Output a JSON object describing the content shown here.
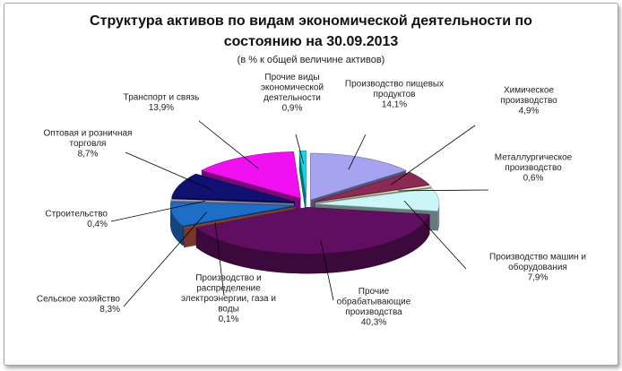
{
  "chart_data": {
    "type": "pie",
    "title_line1": "Структура активов по видам экономической деятельности по",
    "title_line2": "состоянию на 30.09.2013",
    "subtitle": "(в % к общей величине активов)",
    "slices": [
      {
        "label_lines": [
          "Производство пищевых",
          "продуктов"
        ],
        "pct_text": "14,1%",
        "value": 14.1,
        "color": "#a6a3f0",
        "icon": "none"
      },
      {
        "label_lines": [
          "Химическое",
          "производство"
        ],
        "pct_text": "4,9%",
        "value": 4.9,
        "color": "#8b2a55"
      },
      {
        "label_lines": [
          "Металлургическое",
          "производство"
        ],
        "pct_text": "0,6%",
        "value": 0.6,
        "color": "#f2f2c8"
      },
      {
        "label_lines": [
          "Производство машин и",
          "оборудования"
        ],
        "pct_text": "7,9%",
        "value": 7.9,
        "color": "#ccf5f8"
      },
      {
        "label_lines": [
          "Прочие",
          "обрабатывающие",
          "производства"
        ],
        "pct_text": "40,3%",
        "value": 40.3,
        "color": "#600f60"
      },
      {
        "label_lines": [
          "Производство и",
          "распределение",
          "электроэнергии, газа и",
          "воды"
        ],
        "pct_text": "0,1%",
        "value": 0.1,
        "color": "#f06a5a"
      },
      {
        "label_lines": [
          "Сельское хозяйство"
        ],
        "pct_text": "8,3%",
        "value": 8.3,
        "color": "#1e6ec8"
      },
      {
        "label_lines": [
          "Строительство"
        ],
        "pct_text": "0,4%",
        "value": 0.4,
        "color": "#c8c8f0"
      },
      {
        "label_lines": [
          "Оптовая и розничная",
          "торговля"
        ],
        "pct_text": "8,7%",
        "value": 8.7,
        "color": "#101070"
      },
      {
        "label_lines": [
          "Транспорт и связь"
        ],
        "pct_text": "13,9%",
        "value": 13.9,
        "color": "#f010f0"
      },
      {
        "label_lines": [
          "Прочие виды",
          "экономической",
          "деятельности"
        ],
        "pct_text": "0,9%",
        "value": 0.9,
        "color": "#10d8e8"
      }
    ]
  }
}
